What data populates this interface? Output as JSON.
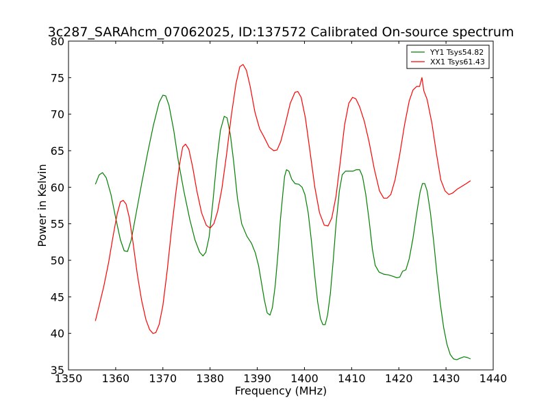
{
  "chart_data": {
    "type": "line",
    "title": "3c287_SARAhcm_07062025, ID:137572 Calibrated On-source spectrum",
    "xlabel": "Frequency (MHz)",
    "ylabel": "Power in Kelvin",
    "xlim": [
      1350,
      1440
    ],
    "ylim": [
      35,
      80
    ],
    "xticks": [
      1350,
      1360,
      1370,
      1380,
      1390,
      1400,
      1410,
      1420,
      1430,
      1440
    ],
    "yticks": [
      35,
      40,
      45,
      50,
      55,
      60,
      65,
      70,
      75,
      80
    ],
    "grid": false,
    "legend_position": "top-right",
    "series": [
      {
        "name": "YY1 Tsys54.82",
        "color": "#008000",
        "points": [
          [
            1355.7,
            60.4
          ],
          [
            1356.5,
            61.7
          ],
          [
            1357.2,
            62.0
          ],
          [
            1358,
            61.3
          ],
          [
            1359,
            59.0
          ],
          [
            1360,
            55.8
          ],
          [
            1361,
            52.8
          ],
          [
            1361.8,
            51.3
          ],
          [
            1362.5,
            51.2
          ],
          [
            1363.3,
            52.8
          ],
          [
            1364.3,
            56.3
          ],
          [
            1365.5,
            60.5
          ],
          [
            1366.8,
            64.8
          ],
          [
            1368,
            68.5
          ],
          [
            1369.2,
            71.6
          ],
          [
            1370,
            72.6
          ],
          [
            1370.6,
            72.5
          ],
          [
            1371.3,
            71.2
          ],
          [
            1372.3,
            67.8
          ],
          [
            1373.3,
            63.5
          ],
          [
            1374.5,
            59.3
          ],
          [
            1375.7,
            55.6
          ],
          [
            1376.8,
            52.8
          ],
          [
            1377.8,
            51.1
          ],
          [
            1378.5,
            50.6
          ],
          [
            1379.1,
            51.1
          ],
          [
            1379.8,
            53.2
          ],
          [
            1380.6,
            58.0
          ],
          [
            1381.4,
            63.5
          ],
          [
            1382.2,
            67.8
          ],
          [
            1383,
            69.7
          ],
          [
            1383.6,
            69.5
          ],
          [
            1384.3,
            67.2
          ],
          [
            1385,
            63.5
          ],
          [
            1385.8,
            58.5
          ],
          [
            1386.7,
            55.0
          ],
          [
            1387.8,
            53.3
          ],
          [
            1388.8,
            52.3
          ],
          [
            1389.6,
            51.0
          ],
          [
            1390.3,
            49.2
          ],
          [
            1390.9,
            46.9
          ],
          [
            1391.5,
            44.6
          ],
          [
            1392.1,
            42.8
          ],
          [
            1392.7,
            42.5
          ],
          [
            1393.2,
            43.5
          ],
          [
            1393.8,
            46.5
          ],
          [
            1394.4,
            51.0
          ],
          [
            1394.9,
            55.5
          ],
          [
            1395.4,
            59.0
          ],
          [
            1395.8,
            61.5
          ],
          [
            1396.2,
            62.4
          ],
          [
            1396.7,
            62.2
          ],
          [
            1397.3,
            61.1
          ],
          [
            1398,
            60.5
          ],
          [
            1398.8,
            60.4
          ],
          [
            1399.5,
            60.0
          ],
          [
            1400.1,
            59.0
          ],
          [
            1400.8,
            56.5
          ],
          [
            1401.5,
            52.5
          ],
          [
            1402.2,
            47.8
          ],
          [
            1402.8,
            44.3
          ],
          [
            1403.4,
            42.0
          ],
          [
            1403.9,
            41.2
          ],
          [
            1404.4,
            41.2
          ],
          [
            1404.9,
            42.5
          ],
          [
            1405.5,
            45.5
          ],
          [
            1406.1,
            50.0
          ],
          [
            1406.7,
            55.0
          ],
          [
            1407.4,
            59.5
          ],
          [
            1408,
            61.7
          ],
          [
            1408.7,
            62.2
          ],
          [
            1409.5,
            62.2
          ],
          [
            1410.3,
            62.2
          ],
          [
            1411,
            62.4
          ],
          [
            1411.7,
            62.4
          ],
          [
            1412.3,
            61.5
          ],
          [
            1413,
            59.0
          ],
          [
            1413.7,
            55.5
          ],
          [
            1414.4,
            51.5
          ],
          [
            1415,
            49.3
          ],
          [
            1415.8,
            48.4
          ],
          [
            1416.8,
            48.1
          ],
          [
            1417.8,
            48.0
          ],
          [
            1418.8,
            47.8
          ],
          [
            1419.6,
            47.6
          ],
          [
            1420.2,
            47.7
          ],
          [
            1420.8,
            48.5
          ],
          [
            1421.5,
            48.7
          ],
          [
            1422.2,
            50.2
          ],
          [
            1423,
            53.0
          ],
          [
            1423.8,
            56.5
          ],
          [
            1424.5,
            59.3
          ],
          [
            1425,
            60.5
          ],
          [
            1425.5,
            60.5
          ],
          [
            1426,
            59.5
          ],
          [
            1426.7,
            56.5
          ],
          [
            1427.4,
            52.5
          ],
          [
            1428.1,
            48.0
          ],
          [
            1428.8,
            44.0
          ],
          [
            1429.5,
            40.8
          ],
          [
            1430.2,
            38.5
          ],
          [
            1430.9,
            37.1
          ],
          [
            1431.6,
            36.5
          ],
          [
            1432.3,
            36.4
          ],
          [
            1433,
            36.6
          ],
          [
            1433.8,
            36.8
          ],
          [
            1434.5,
            36.7
          ],
          [
            1435.2,
            36.5
          ]
        ]
      },
      {
        "name": "XX1 Tsys61.43",
        "color": "#ff0000",
        "points": [
          [
            1355.7,
            41.7
          ],
          [
            1356.5,
            43.8
          ],
          [
            1357.5,
            46.5
          ],
          [
            1358.5,
            49.7
          ],
          [
            1359.5,
            53.5
          ],
          [
            1360.3,
            56.3
          ],
          [
            1361,
            58.0
          ],
          [
            1361.6,
            58.2
          ],
          [
            1362.2,
            57.7
          ],
          [
            1362.9,
            55.8
          ],
          [
            1363.7,
            52.3
          ],
          [
            1364.6,
            48.0
          ],
          [
            1365.5,
            44.5
          ],
          [
            1366.4,
            41.9
          ],
          [
            1367.2,
            40.5
          ],
          [
            1367.9,
            40.0
          ],
          [
            1368.5,
            40.1
          ],
          [
            1369.2,
            41.2
          ],
          [
            1370,
            43.8
          ],
          [
            1370.9,
            48.5
          ],
          [
            1371.8,
            54.0
          ],
          [
            1372.7,
            59.0
          ],
          [
            1373.5,
            63.0
          ],
          [
            1374.2,
            65.5
          ],
          [
            1374.8,
            65.9
          ],
          [
            1375.5,
            65.2
          ],
          [
            1376.3,
            62.8
          ],
          [
            1377.2,
            59.5
          ],
          [
            1378.2,
            56.5
          ],
          [
            1379.2,
            54.8
          ],
          [
            1380,
            54.4
          ],
          [
            1380.8,
            55.0
          ],
          [
            1381.6,
            56.7
          ],
          [
            1382.5,
            59.8
          ],
          [
            1383.5,
            64.5
          ],
          [
            1384.5,
            69.8
          ],
          [
            1385.5,
            74.2
          ],
          [
            1386.3,
            76.5
          ],
          [
            1387,
            76.8
          ],
          [
            1387.7,
            76.0
          ],
          [
            1388.5,
            73.8
          ],
          [
            1389.5,
            70.3
          ],
          [
            1390.5,
            68.0
          ],
          [
            1391.5,
            66.8
          ],
          [
            1392.5,
            65.5
          ],
          [
            1393.5,
            65.0
          ],
          [
            1394.2,
            65.1
          ],
          [
            1395,
            66.3
          ],
          [
            1396,
            68.8
          ],
          [
            1397,
            71.5
          ],
          [
            1398,
            73.0
          ],
          [
            1398.6,
            73.1
          ],
          [
            1399.3,
            72.3
          ],
          [
            1400.2,
            69.5
          ],
          [
            1401.2,
            64.8
          ],
          [
            1402.2,
            60.0
          ],
          [
            1403.2,
            56.5
          ],
          [
            1404.2,
            54.8
          ],
          [
            1405,
            54.7
          ],
          [
            1405.8,
            55.8
          ],
          [
            1406.7,
            58.8
          ],
          [
            1407.6,
            63.5
          ],
          [
            1408.5,
            68.5
          ],
          [
            1409.4,
            71.5
          ],
          [
            1410.2,
            72.3
          ],
          [
            1410.9,
            72.1
          ],
          [
            1411.7,
            71.0
          ],
          [
            1412.7,
            69.0
          ],
          [
            1413.7,
            66.2
          ],
          [
            1414.8,
            62.5
          ],
          [
            1415.9,
            59.5
          ],
          [
            1416.8,
            58.5
          ],
          [
            1417.5,
            58.5
          ],
          [
            1418.3,
            59.0
          ],
          [
            1419.2,
            61.0
          ],
          [
            1420.2,
            64.5
          ],
          [
            1421.2,
            68.5
          ],
          [
            1422.2,
            71.8
          ],
          [
            1423,
            73.3
          ],
          [
            1423.8,
            73.8
          ],
          [
            1424.4,
            73.8
          ],
          [
            1424.9,
            75.0
          ],
          [
            1425.3,
            73.2
          ],
          [
            1426,
            72.0
          ],
          [
            1427,
            68.8
          ],
          [
            1428,
            64.5
          ],
          [
            1428.9,
            61.0
          ],
          [
            1429.8,
            59.5
          ],
          [
            1430.6,
            59.0
          ],
          [
            1431.4,
            59.2
          ],
          [
            1432.3,
            59.7
          ],
          [
            1433.3,
            60.1
          ],
          [
            1434.3,
            60.5
          ],
          [
            1435.2,
            60.9
          ]
        ]
      }
    ]
  }
}
